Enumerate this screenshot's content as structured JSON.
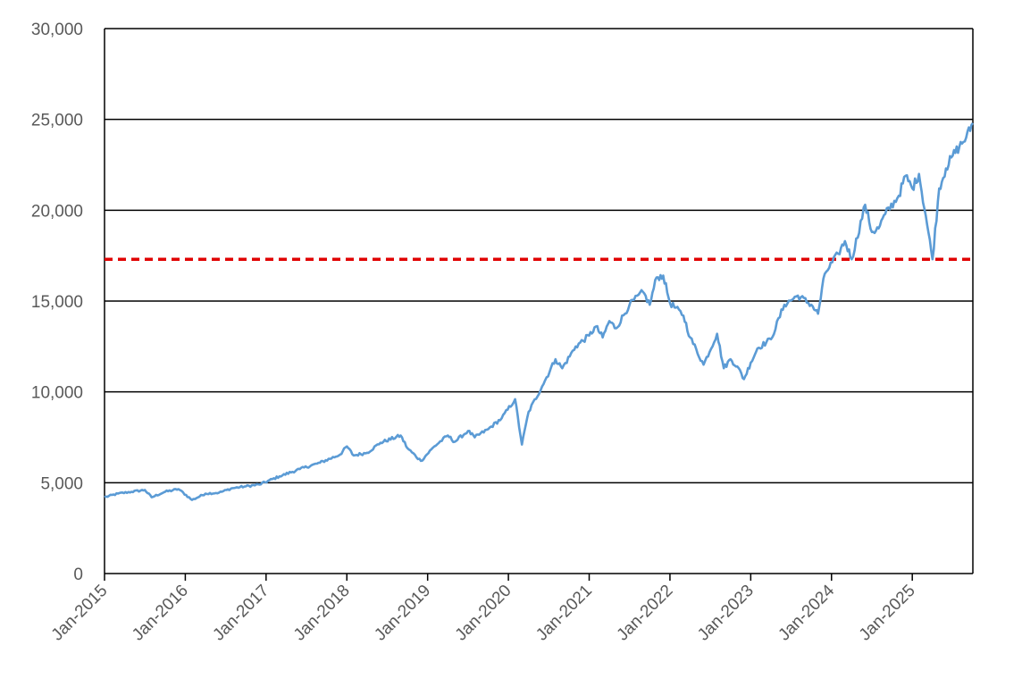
{
  "chart_data": {
    "type": "line",
    "title": "",
    "xlabel": "",
    "ylabel": "",
    "x_tick_labels": [
      "Jan-2015",
      "Jan-2016",
      "Jan-2017",
      "Jan-2018",
      "Jan-2019",
      "Jan-2020",
      "Jan-2021",
      "Jan-2022",
      "Jan-2023",
      "Jan-2024",
      "Jan-2025"
    ],
    "y_tick_labels": [
      "0",
      "5,000",
      "10,000",
      "15,000",
      "20,000",
      "25,000",
      "30,000"
    ],
    "y_ticks": [
      0,
      5000,
      10000,
      15000,
      20000,
      25000,
      30000
    ],
    "ylim": [
      0,
      30000
    ],
    "xlim": [
      "2015-01",
      "2025-10"
    ],
    "grid": "horizontal",
    "series": [
      {
        "color": "#5B9BD5",
        "x": [
          "2015-01",
          "2015-03",
          "2015-05",
          "2015-07",
          "2015-08",
          "2015-10",
          "2015-12",
          "2016-02",
          "2016-04",
          "2016-06",
          "2016-08",
          "2016-10",
          "2016-12",
          "2017-03",
          "2017-06",
          "2017-09",
          "2017-12",
          "2018-01",
          "2018-02",
          "2018-04",
          "2018-06",
          "2018-09",
          "2018-10",
          "2018-12",
          "2019-02",
          "2019-04",
          "2019-05",
          "2019-07",
          "2019-08",
          "2019-10",
          "2019-12",
          "2020-02",
          "2020-03",
          "2020-04",
          "2020-06",
          "2020-08",
          "2020-09",
          "2020-11",
          "2021-01",
          "2021-02",
          "2021-03",
          "2021-04",
          "2021-05",
          "2021-07",
          "2021-09",
          "2021-10",
          "2021-11",
          "2021-12",
          "2022-01",
          "2022-03",
          "2022-04",
          "2022-06",
          "2022-08",
          "2022-09",
          "2022-10",
          "2022-11",
          "2022-12",
          "2023-01",
          "2023-02",
          "2023-04",
          "2023-06",
          "2023-08",
          "2023-10",
          "2023-11",
          "2023-12",
          "2024-02",
          "2024-03",
          "2024-04",
          "2024-06",
          "2024-07",
          "2024-08",
          "2024-09",
          "2024-11",
          "2024-12",
          "2025-01",
          "2025-02",
          "2025-03",
          "2025-04",
          "2025-05",
          "2025-06",
          "2025-07",
          "2025-08",
          "2025-09",
          "2025-10"
        ],
        "y": [
          4200,
          4400,
          4500,
          4600,
          4200,
          4500,
          4650,
          4050,
          4400,
          4450,
          4700,
          4800,
          4900,
          5350,
          5750,
          6100,
          6550,
          7000,
          6500,
          6650,
          7200,
          7600,
          6900,
          6200,
          7000,
          7600,
          7250,
          7850,
          7500,
          7950,
          8550,
          9600,
          7100,
          8900,
          10300,
          11800,
          11300,
          12500,
          13100,
          13600,
          13000,
          13900,
          13500,
          14800,
          15500,
          14800,
          16300,
          16400,
          14900,
          14200,
          13000,
          11500,
          13200,
          11300,
          11800,
          11400,
          10700,
          11600,
          12400,
          12900,
          14800,
          15300,
          14800,
          14300,
          16500,
          17600,
          18300,
          17300,
          20300,
          18800,
          19000,
          19800,
          20800,
          21900,
          21200,
          22000,
          19700,
          17300,
          21200,
          22300,
          23000,
          23500,
          24000,
          24800
        ]
      }
    ],
    "reference_lines": [
      {
        "orientation": "horizontal",
        "y": 17300,
        "color": "#E00000",
        "style": "dashed"
      }
    ]
  }
}
